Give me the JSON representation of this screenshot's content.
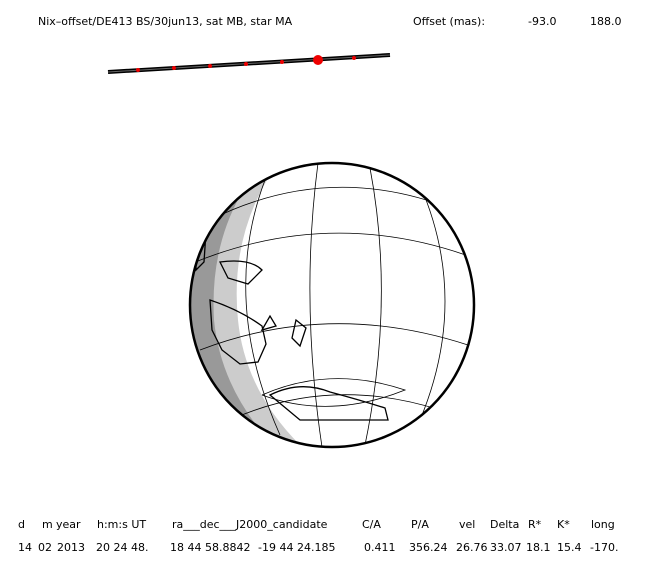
{
  "header": {
    "title": "Nix–offset/DE413 BS/30jun13, sat MB, star MA",
    "offset_label": "Offset (mas):",
    "offset_values": [
      "-93.0",
      "188.0"
    ]
  },
  "table": {
    "columns": [
      "d",
      "m",
      "year",
      "h:m:s UT",
      "ra___dec___J2000_candidate",
      "C/A",
      "P/A",
      "vel",
      "Delta",
      "R*",
      "K*",
      "long"
    ],
    "row": [
      "14",
      "02",
      "2013",
      "20 24 48.",
      "18 44 58.8842",
      "-19 44 24.185",
      "0.411",
      "356.24",
      "26.76",
      "33.07",
      "18.1",
      "15.4",
      "-170."
    ]
  }
}
